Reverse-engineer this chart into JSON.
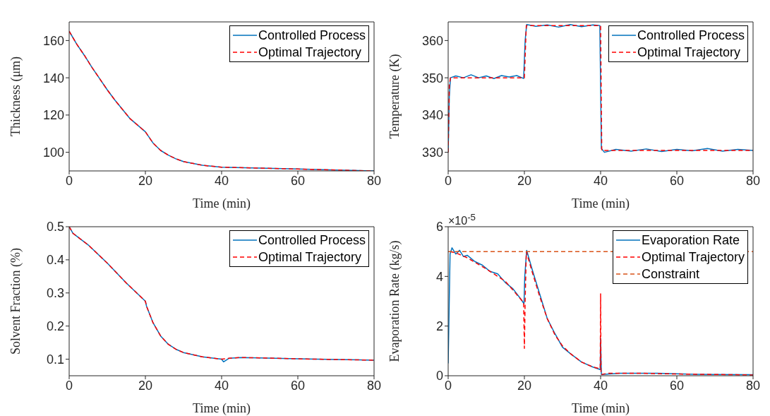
{
  "chart_data": [
    {
      "type": "line",
      "xlabel": "Time (min)",
      "ylabel": "Thickness (μm)",
      "xlim": [
        0,
        80
      ],
      "xticks": [
        0,
        20,
        40,
        60,
        80
      ],
      "ylim": [
        90,
        170
      ],
      "yticks": [
        100,
        120,
        140,
        160
      ],
      "legend": "top right",
      "grid": false,
      "marker": "none",
      "series": [
        {
          "name": "Controlled Process",
          "color": "#0072bd",
          "line_style": "solid",
          "x": [
            0,
            2,
            4,
            6,
            8,
            10,
            12,
            14,
            16,
            18,
            20,
            22,
            24,
            26,
            28,
            30,
            35,
            40,
            50,
            60,
            70,
            80
          ],
          "values": [
            165,
            158,
            152,
            145.5,
            139.5,
            133.5,
            128,
            123,
            118,
            114.5,
            111,
            105,
            101,
            98.5,
            96.5,
            95,
            93,
            92,
            91.5,
            91,
            90.5,
            90
          ]
        },
        {
          "name": "Optimal Trajectory",
          "color": "#ff0000",
          "line_style": "dashed",
          "x": [
            0,
            2,
            4,
            6,
            8,
            10,
            12,
            14,
            16,
            18,
            20,
            22,
            24,
            26,
            28,
            30,
            35,
            40,
            50,
            60,
            70,
            80
          ],
          "values": [
            165,
            158,
            152,
            145.5,
            139.5,
            133.5,
            128,
            123,
            118,
            114.5,
            111,
            105,
            101,
            98.5,
            96.5,
            95,
            93,
            92,
            91.5,
            91,
            90.5,
            90
          ]
        }
      ]
    },
    {
      "type": "line",
      "xlabel": "Time (min)",
      "ylabel": "Temperature (K)",
      "xlim": [
        0,
        80
      ],
      "xticks": [
        0,
        20,
        40,
        60,
        80
      ],
      "ylim": [
        325,
        365
      ],
      "yticks": [
        330,
        340,
        350,
        360
      ],
      "legend": "top right",
      "grid": false,
      "marker": "none",
      "series": [
        {
          "name": "Controlled Process",
          "color": "#0072bd",
          "line_style": "solid",
          "x": [
            0,
            0.3,
            0.6,
            2,
            4,
            6,
            8,
            10,
            12,
            14,
            16,
            18,
            19.8,
            20.2,
            20.6,
            23,
            26,
            29,
            32,
            35,
            38,
            39.8,
            40.2,
            41,
            44,
            48,
            52,
            56,
            60,
            64,
            68,
            72,
            76,
            80
          ],
          "values": [
            330,
            345,
            350,
            350.5,
            350,
            350.8,
            350,
            350.5,
            349.8,
            350.6,
            350.2,
            350.6,
            349.8,
            360,
            364.3,
            363.8,
            364.2,
            363.6,
            364.3,
            363.7,
            364.2,
            364,
            331,
            330,
            330.8,
            330.3,
            330.9,
            330.2,
            330.8,
            330.4,
            331,
            330.3,
            330.8,
            330.5
          ]
        },
        {
          "name": "Optimal Trajectory",
          "color": "#ff0000",
          "line_style": "dashed",
          "x": [
            0,
            0.3,
            0.6,
            20,
            20.5,
            40,
            40.3,
            80
          ],
          "values": [
            330,
            348,
            350,
            350,
            364,
            364,
            330.5,
            330.5
          ]
        }
      ]
    },
    {
      "type": "line",
      "xlabel": "Time (min)",
      "ylabel": "Solvent Fraction (%)",
      "xlim": [
        0,
        80
      ],
      "xticks": [
        0,
        20,
        40,
        60,
        80
      ],
      "ylim": [
        0.05,
        0.5
      ],
      "yticks": [
        0.1,
        0.2,
        0.3,
        0.4,
        0.5
      ],
      "legend": "top right",
      "grid": false,
      "marker": "none",
      "series": [
        {
          "name": "Controlled Process",
          "color": "#0072bd",
          "line_style": "solid",
          "x": [
            0,
            1,
            5,
            10,
            15,
            20,
            20.3,
            22,
            24,
            26,
            28,
            30,
            35,
            40,
            40.5,
            42,
            45,
            50,
            60,
            70,
            80
          ],
          "values": [
            0.5,
            0.48,
            0.445,
            0.39,
            0.33,
            0.275,
            0.26,
            0.21,
            0.17,
            0.145,
            0.13,
            0.12,
            0.107,
            0.1,
            0.092,
            0.103,
            0.105,
            0.104,
            0.101,
            0.099,
            0.097
          ]
        },
        {
          "name": "Optimal Trajectory",
          "color": "#ff0000",
          "line_style": "dashed",
          "x": [
            0,
            1,
            5,
            10,
            15,
            20,
            20.3,
            22,
            24,
            26,
            28,
            30,
            35,
            40,
            42,
            45,
            50,
            60,
            70,
            80
          ],
          "values": [
            0.5,
            0.48,
            0.445,
            0.39,
            0.33,
            0.275,
            0.26,
            0.21,
            0.17,
            0.145,
            0.13,
            0.12,
            0.107,
            0.1,
            0.103,
            0.105,
            0.104,
            0.101,
            0.099,
            0.097
          ]
        }
      ]
    },
    {
      "type": "line",
      "xlabel": "Time (min)",
      "ylabel": "Evaporation Rate (kg/s)",
      "annotations": [
        "×10$^{-5}$"
      ],
      "xlim": [
        0,
        80
      ],
      "xticks": [
        0,
        20,
        40,
        60,
        80
      ],
      "ylim": [
        0,
        6
      ],
      "yticks": [
        0,
        2,
        4,
        6
      ],
      "legend": "top right",
      "grid": false,
      "marker": "none",
      "series": [
        {
          "name": "Evaporation Rate",
          "color": "#0072bd",
          "line_style": "solid",
          "x": [
            0,
            0.5,
            1,
            2,
            3,
            4,
            5,
            7,
            9,
            11,
            13,
            15,
            17,
            19,
            19.9,
            20.1,
            20.6,
            22,
            24,
            26,
            28,
            30,
            32,
            35,
            38,
            39.9,
            40,
            40.2,
            45,
            55,
            65,
            80
          ],
          "values": [
            0.5,
            4.9,
            5.15,
            4.9,
            5.05,
            4.8,
            4.85,
            4.6,
            4.45,
            4.2,
            4.1,
            3.75,
            3.5,
            3.1,
            2.9,
            4,
            5.05,
            4.3,
            3.3,
            2.3,
            1.7,
            1.15,
            0.9,
            0.55,
            0.35,
            0.25,
            1.5,
            0.05,
            0.1,
            0.1,
            0.06,
            0.04
          ]
        },
        {
          "name": "Optimal Trajectory",
          "color": "#ff0000",
          "line_style": "dashed",
          "x": [
            0.5,
            2,
            5,
            10,
            15,
            19.8,
            20,
            20.2,
            20.5,
            22,
            24,
            26,
            28,
            30,
            32,
            35,
            38,
            39.9,
            40,
            40.1,
            42,
            50,
            60,
            70,
            80
          ],
          "values": [
            5,
            4.95,
            4.75,
            4.3,
            3.8,
            2.95,
            1.1,
            3,
            5,
            4.2,
            3.2,
            2.3,
            1.65,
            1.2,
            0.9,
            0.55,
            0.35,
            0.28,
            3.3,
            0.05,
            0.1,
            0.1,
            0.07,
            0.05,
            0.03
          ]
        },
        {
          "name": "Constraint",
          "color": "#d95319",
          "line_style": "dashed",
          "x": [
            0,
            80
          ],
          "values": [
            5,
            5
          ]
        }
      ]
    }
  ]
}
